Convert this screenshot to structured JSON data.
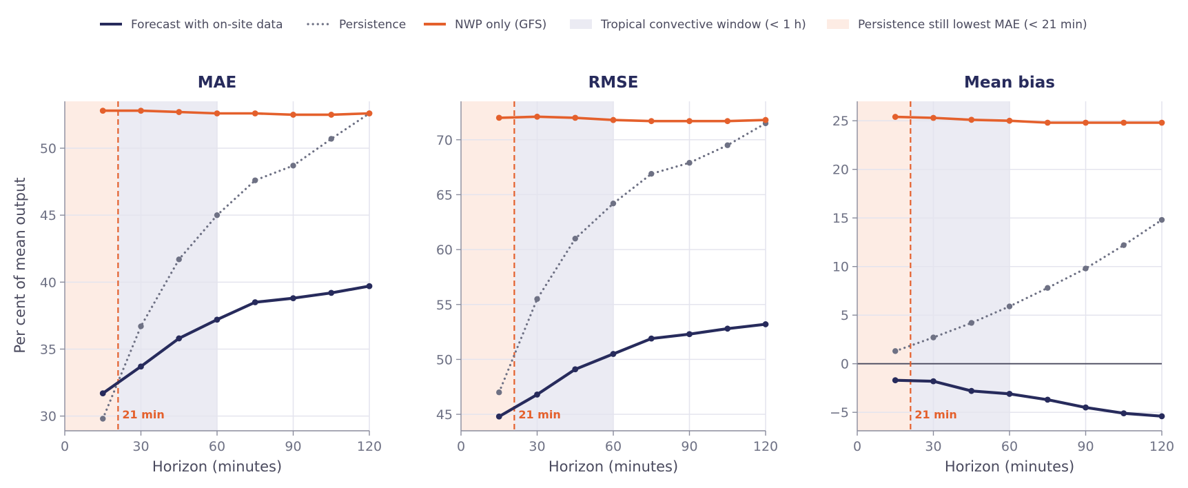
{
  "colors": {
    "forecast": "#272b5c",
    "persistence": "#6e7184",
    "nwp": "#e4602c",
    "convective_band": "#ebebf3",
    "persistence_band": "#fdece4",
    "zero_line": "#4a4a5e",
    "grid": "#e4e4ee"
  },
  "legend": [
    {
      "key": "forecast",
      "label": "Forecast with on-site data",
      "style": "line"
    },
    {
      "key": "persistence",
      "label": "Persistence",
      "style": "dotted"
    },
    {
      "key": "nwp",
      "label": "NWP only (GFS)",
      "style": "line"
    },
    {
      "key": "convective_band",
      "label": "Tropical convective window (< 1 h)",
      "style": "patch"
    },
    {
      "key": "persistence_band",
      "label": "Persistence still lowest MAE (< 21 min)",
      "style": "patch"
    }
  ],
  "annotation": {
    "label": "21 min",
    "x": 21
  },
  "shared_ylabel": "Per cent of mean output",
  "chart_data": [
    {
      "type": "line",
      "title": "MAE",
      "xlabel": "Horizon (minutes)",
      "xlim": [
        0,
        120
      ],
      "ylim": [
        28.9,
        53.5
      ],
      "xticks": [
        0,
        30,
        60,
        90,
        120
      ],
      "yticks": [
        30,
        35,
        40,
        45,
        50
      ],
      "grid": true,
      "bands": [
        {
          "key": "persistence_band",
          "x": [
            0,
            21
          ]
        },
        {
          "key": "convective_band",
          "x": [
            21,
            60
          ]
        }
      ],
      "zero_line": false,
      "x": [
        15,
        30,
        45,
        60,
        75,
        90,
        105,
        120
      ],
      "series": [
        {
          "name": "Forecast with on-site data",
          "key": "forecast",
          "values": [
            31.7,
            33.7,
            35.8,
            37.2,
            38.5,
            38.8,
            39.2,
            39.7
          ]
        },
        {
          "name": "Persistence",
          "key": "persistence",
          "values": [
            29.8,
            36.7,
            41.7,
            45.0,
            47.6,
            48.7,
            50.7,
            52.6
          ]
        },
        {
          "name": "NWP only (GFS)",
          "key": "nwp",
          "values": [
            52.8,
            52.8,
            52.7,
            52.6,
            52.6,
            52.5,
            52.5,
            52.6
          ]
        }
      ]
    },
    {
      "type": "line",
      "title": "RMSE",
      "xlabel": "Horizon (minutes)",
      "xlim": [
        0,
        120
      ],
      "ylim": [
        43.5,
        73.5
      ],
      "xticks": [
        0,
        30,
        60,
        90,
        120
      ],
      "yticks": [
        45,
        50,
        55,
        60,
        65,
        70
      ],
      "grid": true,
      "bands": [
        {
          "key": "persistence_band",
          "x": [
            0,
            21
          ]
        },
        {
          "key": "convective_band",
          "x": [
            21,
            60
          ]
        }
      ],
      "zero_line": false,
      "x": [
        15,
        30,
        45,
        60,
        75,
        90,
        105,
        120
      ],
      "series": [
        {
          "name": "Forecast with on-site data",
          "key": "forecast",
          "values": [
            44.8,
            46.8,
            49.1,
            50.5,
            51.9,
            52.3,
            52.8,
            53.2
          ]
        },
        {
          "name": "Persistence",
          "key": "persistence",
          "values": [
            47.0,
            55.5,
            61.0,
            64.2,
            66.9,
            67.9,
            69.5,
            71.5
          ]
        },
        {
          "name": "NWP only (GFS)",
          "key": "nwp",
          "values": [
            72.0,
            72.1,
            72.0,
            71.8,
            71.7,
            71.7,
            71.7,
            71.8
          ]
        }
      ]
    },
    {
      "type": "line",
      "title": "Mean bias",
      "xlabel": "Horizon (minutes)",
      "xlim": [
        0,
        120
      ],
      "ylim": [
        -6.9,
        27.0
      ],
      "xticks": [
        0,
        30,
        60,
        90,
        120
      ],
      "yticks": [
        -5,
        0,
        5,
        10,
        15,
        20,
        25
      ],
      "grid": true,
      "bands": [
        {
          "key": "persistence_band",
          "x": [
            0,
            21
          ]
        },
        {
          "key": "convective_band",
          "x": [
            21,
            60
          ]
        }
      ],
      "zero_line": true,
      "x": [
        15,
        30,
        45,
        60,
        75,
        90,
        105,
        120
      ],
      "series": [
        {
          "name": "Forecast with on-site data",
          "key": "forecast",
          "values": [
            -1.7,
            -1.8,
            -2.8,
            -3.1,
            -3.7,
            -4.5,
            -5.1,
            -5.4
          ]
        },
        {
          "name": "Persistence",
          "key": "persistence",
          "values": [
            1.3,
            2.7,
            4.2,
            5.9,
            7.8,
            9.8,
            12.2,
            14.8
          ]
        },
        {
          "name": "NWP only (GFS)",
          "key": "nwp",
          "values": [
            25.4,
            25.3,
            25.1,
            25.0,
            24.8,
            24.8,
            24.8,
            24.8
          ]
        }
      ]
    }
  ]
}
